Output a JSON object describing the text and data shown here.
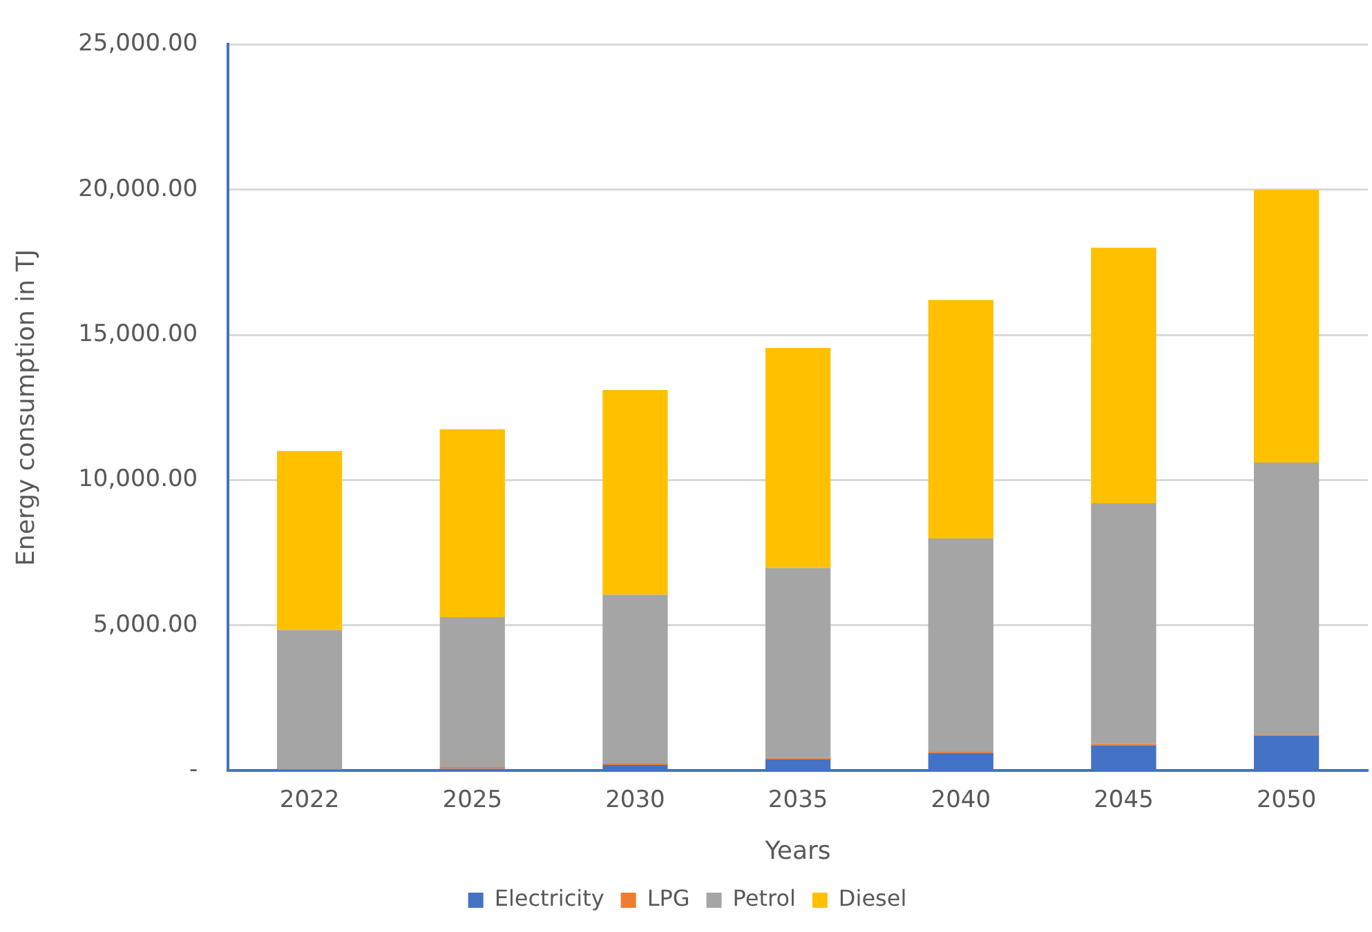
{
  "chart_data": {
    "type": "bar",
    "stacked": true,
    "xlabel": "Years",
    "ylabel": "Energy consumption in TJ",
    "categories": [
      "2022",
      "2025",
      "2030",
      "2035",
      "2040",
      "2045",
      "2050"
    ],
    "series": [
      {
        "name": "Electricity",
        "color": "#4472c4",
        "values": [
          0,
          60,
          190,
          390,
          600,
          860,
          1190
        ]
      },
      {
        "name": "LPG",
        "color": "#ed7d31",
        "values": [
          0,
          60,
          50,
          50,
          40,
          50,
          40
        ]
      },
      {
        "name": "Petrol",
        "color": "#a5a5a5",
        "values": [
          4840,
          5160,
          5810,
          6530,
          7350,
          8290,
          9370
        ]
      },
      {
        "name": "Diesel",
        "color": "#ffc000",
        "values": [
          6160,
          6470,
          7050,
          7580,
          8210,
          8800,
          9400
        ]
      }
    ],
    "ylim": [
      0,
      25000
    ],
    "yticks": [
      {
        "value": 0,
        "label": "-"
      },
      {
        "value": 5000,
        "label": "5,000.00"
      },
      {
        "value": 10000,
        "label": "10,000.00"
      },
      {
        "value": 15000,
        "label": "15,000.00"
      },
      {
        "value": 20000,
        "label": "20,000.00"
      },
      {
        "value": 25000,
        "label": "25,000.00"
      }
    ],
    "grid": "y",
    "legend": "bottom"
  }
}
